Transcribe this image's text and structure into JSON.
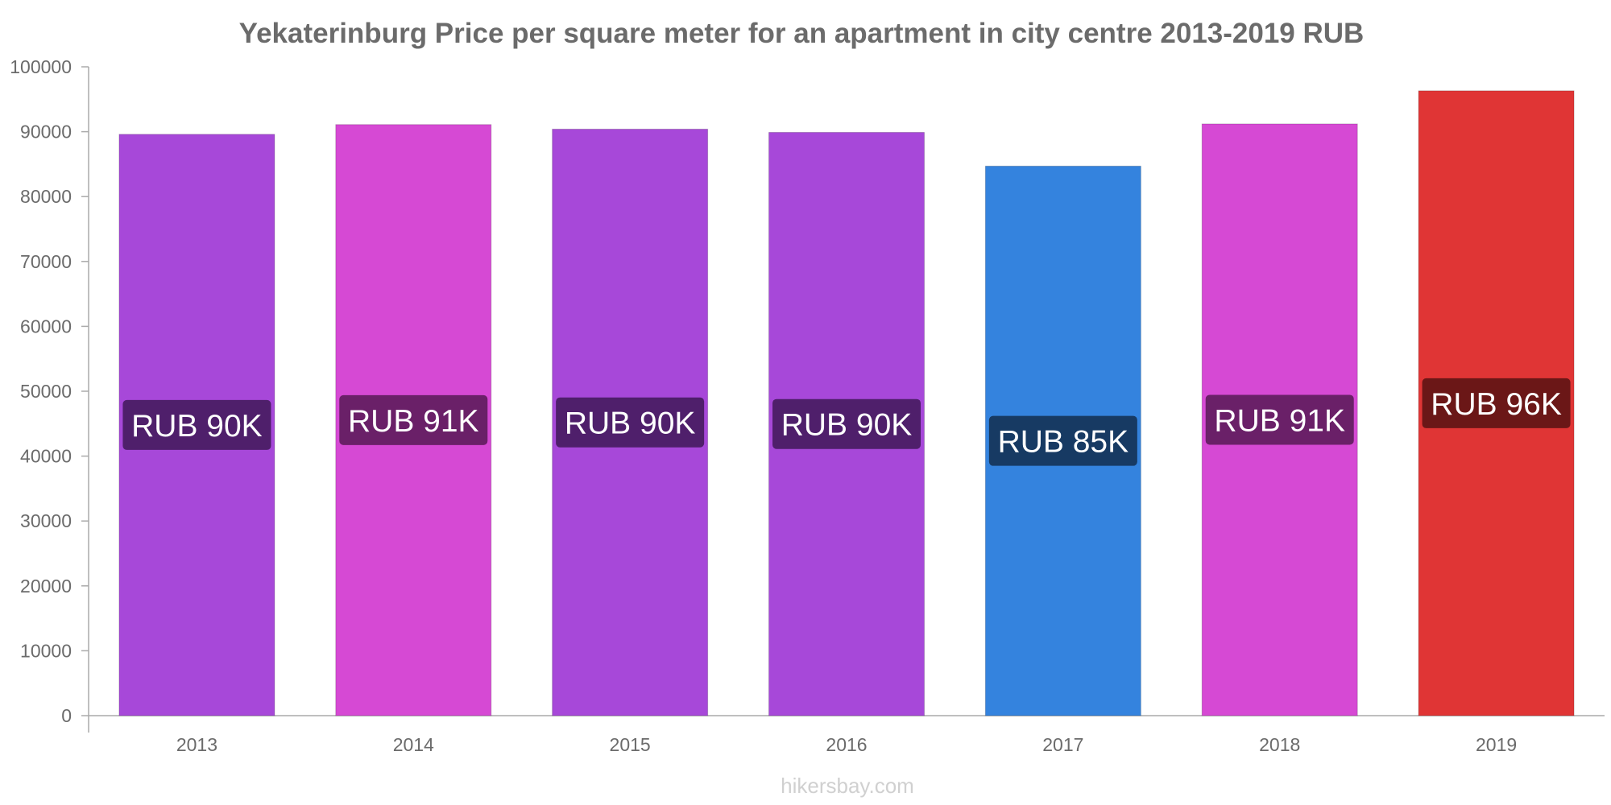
{
  "chart_data": {
    "type": "bar",
    "title": "Yekaterinburg Price per square meter for an apartment in city centre 2013-2019 RUB",
    "categories": [
      "2013",
      "2014",
      "2015",
      "2016",
      "2017",
      "2018",
      "2019"
    ],
    "values": [
      89600,
      91100,
      90400,
      89900,
      84700,
      91200,
      96300
    ],
    "data_labels": [
      "RUB 90K",
      "RUB 91K",
      "RUB 90K",
      "RUB 90K",
      "RUB 85K",
      "RUB 91K",
      "RUB 96K"
    ],
    "bar_colors": [
      "#a748d9",
      "#d649d4",
      "#a748d9",
      "#a748d9",
      "#3483de",
      "#d649d4",
      "#e03535"
    ],
    "label_box_colors": [
      "#4f1f6b",
      "#6a2068",
      "#4f1f6b",
      "#4f1f6b",
      "#173a63",
      "#6a2068",
      "#6b1717"
    ],
    "ylim": [
      0,
      100000
    ],
    "yticks": [
      "0",
      "10000",
      "20000",
      "30000",
      "40000",
      "50000",
      "60000",
      "70000",
      "80000",
      "90000",
      "100000"
    ],
    "xlabel": "",
    "ylabel": "",
    "grid": false,
    "legend": "none"
  },
  "watermark": "hikersbay.com"
}
